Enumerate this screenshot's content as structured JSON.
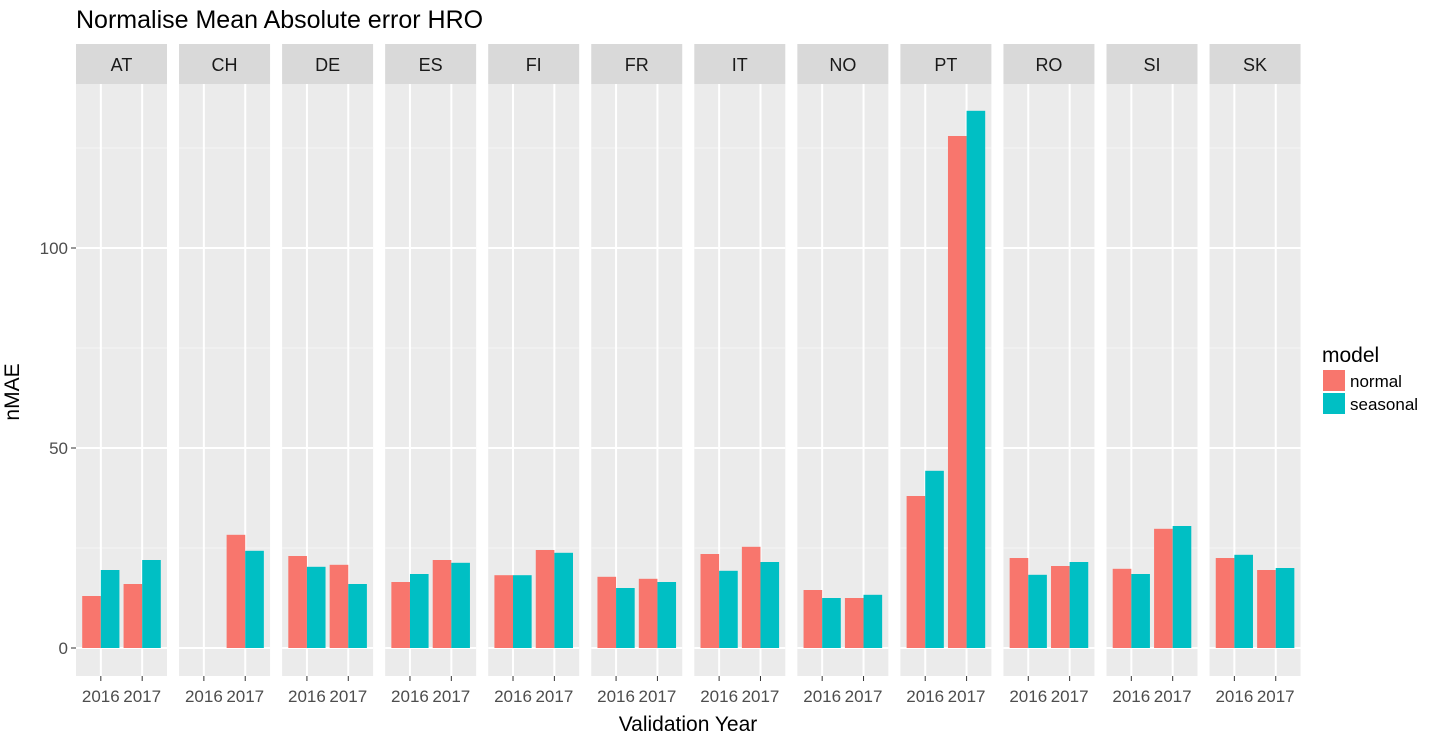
{
  "chart_data": {
    "type": "bar",
    "title": "Normalise Mean Absolute error HRO",
    "xlabel": "Validation Year",
    "ylabel": "nMAE",
    "ylim": [
      -7,
      141
    ],
    "y_ticks": [
      0,
      50,
      100
    ],
    "x_categories": [
      "2016",
      "2017"
    ],
    "grid": true,
    "legend": {
      "title": "model",
      "placement": "right",
      "entries": [
        {
          "name": "normal",
          "color": "#F8766D"
        },
        {
          "name": "seasonal",
          "color": "#00BFC4"
        }
      ]
    },
    "facets": [
      {
        "name": "AT",
        "values": {
          "normal": [
            13,
            16
          ],
          "seasonal": [
            19.5,
            22
          ]
        }
      },
      {
        "name": "CH",
        "values": {
          "normal": [
            null,
            28.3
          ],
          "seasonal": [
            null,
            24.3
          ]
        }
      },
      {
        "name": "DE",
        "values": {
          "normal": [
            23,
            20.8
          ],
          "seasonal": [
            20.3,
            16
          ]
        }
      },
      {
        "name": "ES",
        "values": {
          "normal": [
            16.5,
            22
          ],
          "seasonal": [
            18.5,
            21.3
          ]
        }
      },
      {
        "name": "FI",
        "values": {
          "normal": [
            18.2,
            24.5
          ],
          "seasonal": [
            18.2,
            23.8
          ]
        }
      },
      {
        "name": "FR",
        "values": {
          "normal": [
            17.8,
            17.3
          ],
          "seasonal": [
            15,
            16.5
          ]
        }
      },
      {
        "name": "IT",
        "values": {
          "normal": [
            23.5,
            25.3
          ],
          "seasonal": [
            19.3,
            21.5
          ]
        }
      },
      {
        "name": "NO",
        "values": {
          "normal": [
            14.5,
            12.5
          ],
          "seasonal": [
            12.5,
            13.3
          ]
        }
      },
      {
        "name": "PT",
        "values": {
          "normal": [
            38,
            128
          ],
          "seasonal": [
            44.3,
            134.3
          ]
        }
      },
      {
        "name": "RO",
        "values": {
          "normal": [
            22.5,
            20.5
          ],
          "seasonal": [
            18.3,
            21.5
          ]
        }
      },
      {
        "name": "SI",
        "values": {
          "normal": [
            19.8,
            29.8
          ],
          "seasonal": [
            18.5,
            30.5
          ]
        }
      },
      {
        "name": "SK",
        "values": {
          "normal": [
            22.5,
            19.5
          ],
          "seasonal": [
            23.3,
            20
          ]
        }
      }
    ]
  }
}
